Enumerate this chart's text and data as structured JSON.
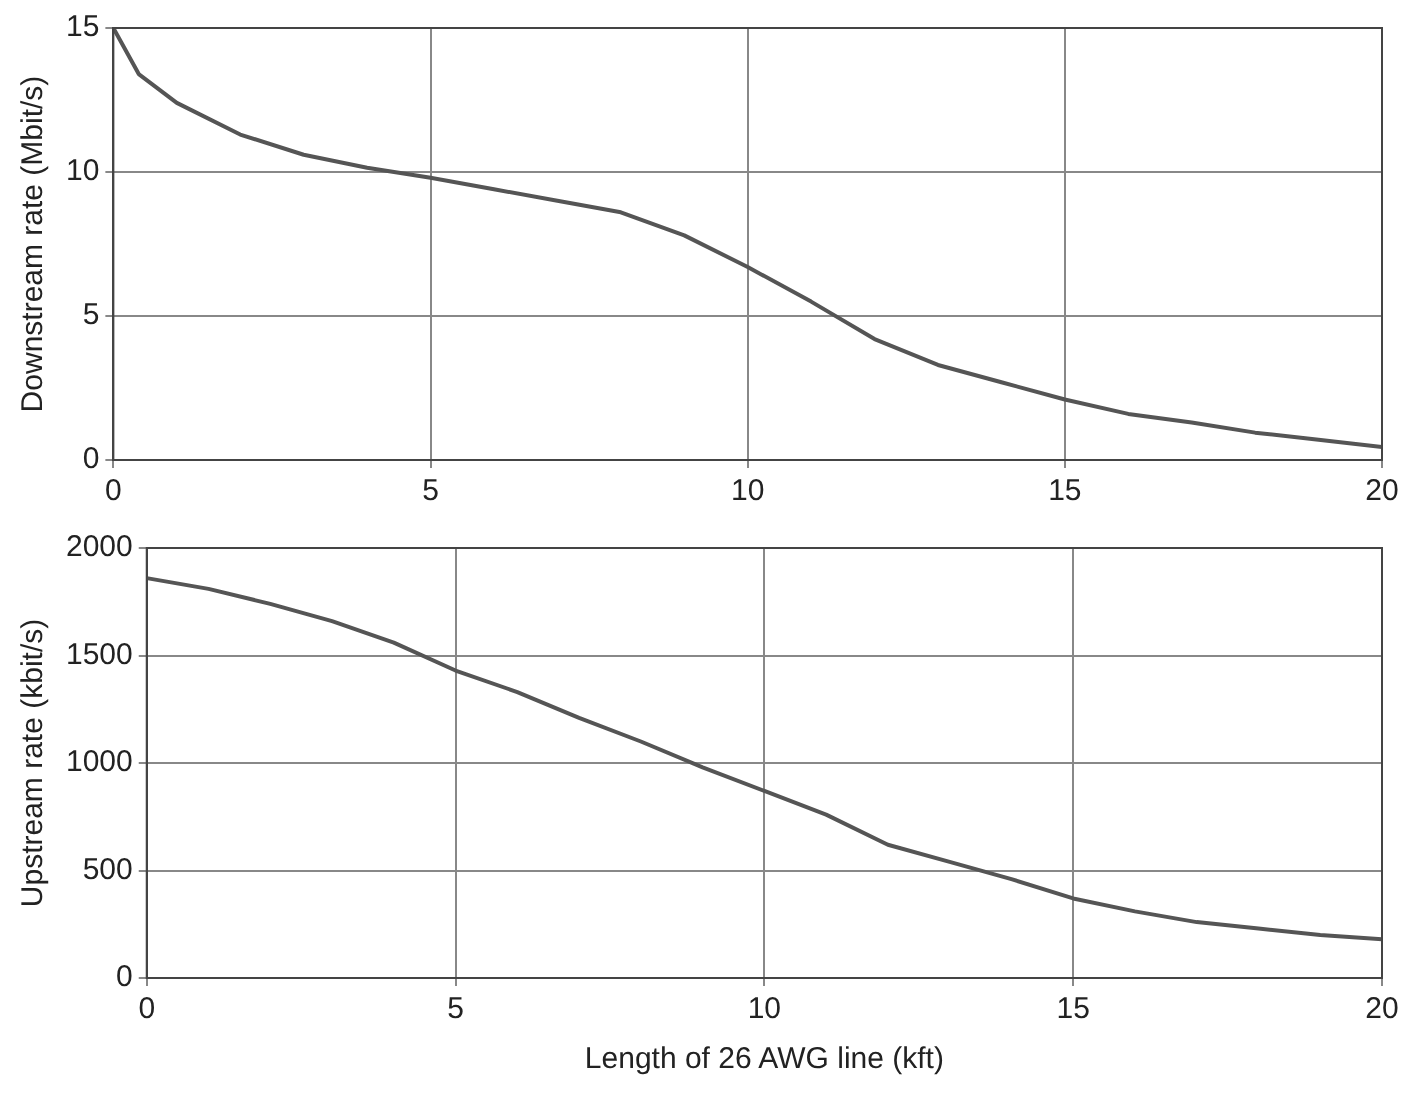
{
  "chart_data": [
    {
      "type": "line",
      "ylabel": "Downstream rate (Mbit/s)",
      "x": [
        0,
        0.4,
        1,
        2,
        3,
        4,
        5,
        6,
        7,
        8,
        9,
        10,
        11,
        12,
        13,
        14,
        15,
        16,
        17,
        18,
        19,
        20
      ],
      "series": [
        {
          "color": "#555555",
          "values": [
            15,
            13.4,
            12.4,
            11.3,
            10.6,
            10.15,
            9.8,
            9.4,
            9.0,
            8.6,
            7.8,
            6.7,
            5.5,
            4.2,
            3.3,
            2.7,
            2.1,
            1.6,
            1.3,
            0.95,
            0.7,
            0.45
          ]
        }
      ],
      "xlim": [
        0,
        20
      ],
      "xticks": [
        0,
        5,
        10,
        15,
        20
      ],
      "ylim": [
        0,
        15
      ],
      "yticks": [
        0,
        5,
        10,
        15
      ],
      "grid": true,
      "legend": false,
      "marker": "none",
      "line_style": "solid"
    },
    {
      "type": "line",
      "xlabel": "Length of 26 AWG line (kft)",
      "ylabel": "Upstream rate (kbit/s)",
      "x": [
        0,
        1,
        2,
        3,
        4,
        5,
        6,
        7,
        8,
        9,
        10,
        11,
        12,
        13,
        14,
        15,
        16,
        17,
        18,
        19,
        20
      ],
      "series": [
        {
          "color": "#555555",
          "values": [
            1860,
            1810,
            1740,
            1660,
            1560,
            1430,
            1330,
            1210,
            1100,
            980,
            870,
            760,
            620,
            540,
            460,
            370,
            310,
            260,
            230,
            200,
            180
          ]
        }
      ],
      "xlim": [
        0,
        20
      ],
      "xticks": [
        0,
        5,
        10,
        15,
        20
      ],
      "ylim": [
        0,
        2000
      ],
      "yticks": [
        0,
        500,
        1000,
        1500,
        2000
      ],
      "grid": true,
      "legend": false,
      "marker": "none",
      "line_style": "solid"
    }
  ]
}
